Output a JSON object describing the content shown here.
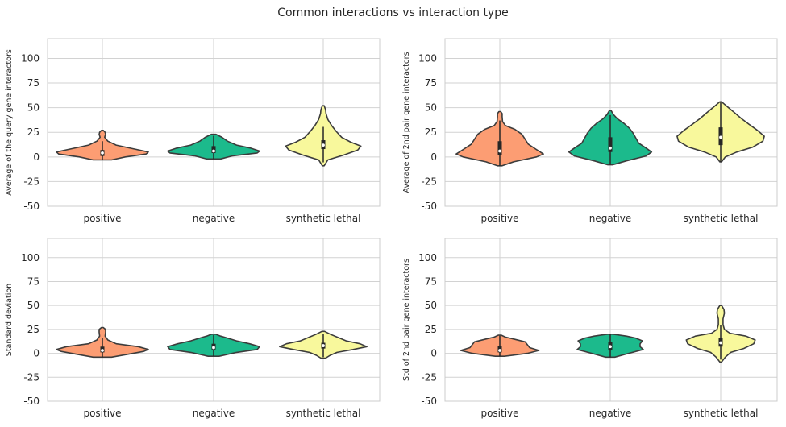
{
  "figure": {
    "title": "Common interactions vs interaction type"
  },
  "colors": {
    "positive": "#fc9d73",
    "negative": "#1cba8c",
    "synthetic_lethal": "#f8f89c",
    "outline": "#3c3c3c",
    "grid": "#d2d2d2",
    "box": "#262626"
  },
  "chart_data": [
    {
      "type": "violin",
      "ylabel": "Average of the query gene interactors",
      "categories": [
        "positive",
        "negative",
        "synthetic lethal"
      ],
      "ylim": [
        -50,
        120
      ],
      "yticks": [
        -50,
        -25,
        0,
        25,
        50,
        75,
        100
      ],
      "grid": true,
      "series": [
        {
          "category": "positive",
          "min": -3,
          "max": 27,
          "q1": 1,
          "median": 4,
          "q3": 7,
          "density": [
            [
              -3,
              0.2
            ],
            [
              0,
              0.5
            ],
            [
              3,
              0.95
            ],
            [
              5,
              1.0
            ],
            [
              8,
              0.7
            ],
            [
              12,
              0.3
            ],
            [
              16,
              0.12
            ],
            [
              20,
              0.05
            ],
            [
              23,
              0.07
            ],
            [
              25,
              0.06
            ],
            [
              27,
              0.02
            ]
          ]
        },
        {
          "category": "negative",
          "min": -2,
          "max": 23,
          "q1": 4,
          "median": 6,
          "q3": 11,
          "density": [
            [
              -2,
              0.15
            ],
            [
              1,
              0.4
            ],
            [
              4,
              0.95
            ],
            [
              6,
              1.0
            ],
            [
              9,
              0.8
            ],
            [
              12,
              0.5
            ],
            [
              16,
              0.3
            ],
            [
              20,
              0.18
            ],
            [
              23,
              0.05
            ]
          ]
        },
        {
          "category": "synthetic lethal",
          "min": -9,
          "max": 52,
          "q1": 8,
          "median": 12,
          "q3": 17,
          "density": [
            [
              -9,
              0.02
            ],
            [
              -3,
              0.1
            ],
            [
              2,
              0.45
            ],
            [
              7,
              0.75
            ],
            [
              11,
              0.82
            ],
            [
              15,
              0.6
            ],
            [
              20,
              0.4
            ],
            [
              26,
              0.28
            ],
            [
              32,
              0.18
            ],
            [
              38,
              0.1
            ],
            [
              44,
              0.06
            ],
            [
              48,
              0.05
            ],
            [
              52,
              0.02
            ]
          ]
        }
      ]
    },
    {
      "type": "violin",
      "ylabel": "Average of 2nd pair gene interactors",
      "categories": [
        "positive",
        "negative",
        "synthetic lethal"
      ],
      "ylim": [
        -50,
        120
      ],
      "yticks": [
        -50,
        -25,
        0,
        25,
        50,
        75,
        100
      ],
      "grid": true,
      "series": [
        {
          "category": "positive",
          "min": -9,
          "max": 46,
          "q1": 2,
          "median": 6,
          "q3": 16,
          "density": [
            [
              -9,
              0.05
            ],
            [
              -5,
              0.3
            ],
            [
              0,
              0.8
            ],
            [
              3,
              0.95
            ],
            [
              8,
              0.78
            ],
            [
              13,
              0.62
            ],
            [
              18,
              0.55
            ],
            [
              23,
              0.48
            ],
            [
              28,
              0.33
            ],
            [
              32,
              0.12
            ],
            [
              36,
              0.06
            ],
            [
              41,
              0.05
            ],
            [
              44,
              0.05
            ],
            [
              46,
              0.02
            ]
          ]
        },
        {
          "category": "negative",
          "min": -8,
          "max": 47,
          "q1": 5,
          "median": 9,
          "q3": 20,
          "density": [
            [
              -8,
              0.05
            ],
            [
              -4,
              0.35
            ],
            [
              1,
              0.78
            ],
            [
              5,
              0.9
            ],
            [
              9,
              0.78
            ],
            [
              14,
              0.62
            ],
            [
              19,
              0.56
            ],
            [
              24,
              0.5
            ],
            [
              29,
              0.42
            ],
            [
              34,
              0.3
            ],
            [
              39,
              0.15
            ],
            [
              43,
              0.07
            ],
            [
              47,
              0.02
            ]
          ]
        },
        {
          "category": "synthetic lethal",
          "min": -5,
          "max": 56,
          "q1": 12,
          "median": 20,
          "q3": 30,
          "density": [
            [
              -5,
              0.02
            ],
            [
              0,
              0.1
            ],
            [
              5,
              0.35
            ],
            [
              10,
              0.7
            ],
            [
              16,
              0.92
            ],
            [
              21,
              0.95
            ],
            [
              27,
              0.8
            ],
            [
              33,
              0.62
            ],
            [
              39,
              0.45
            ],
            [
              45,
              0.3
            ],
            [
              50,
              0.17
            ],
            [
              54,
              0.07
            ],
            [
              56,
              0.02
            ]
          ]
        }
      ]
    },
    {
      "type": "violin",
      "ylabel": "Standard deviation",
      "categories": [
        "positive",
        "negative",
        "synthetic lethal"
      ],
      "ylim": [
        -50,
        120
      ],
      "yticks": [
        -50,
        -25,
        0,
        25,
        50,
        75,
        100
      ],
      "grid": true,
      "series": [
        {
          "category": "positive",
          "min": -4,
          "max": 27,
          "q1": 1,
          "median": 3,
          "q3": 7,
          "density": [
            [
              -4,
              0.2
            ],
            [
              -1,
              0.55
            ],
            [
              2,
              0.9
            ],
            [
              4,
              1.0
            ],
            [
              7,
              0.78
            ],
            [
              10,
              0.3
            ],
            [
              14,
              0.12
            ],
            [
              18,
              0.06
            ],
            [
              22,
              0.07
            ],
            [
              25,
              0.07
            ],
            [
              27,
              0.02
            ]
          ]
        },
        {
          "category": "negative",
          "min": -3,
          "max": 20,
          "q1": 4,
          "median": 6,
          "q3": 10,
          "density": [
            [
              -3,
              0.12
            ],
            [
              1,
              0.5
            ],
            [
              4,
              0.95
            ],
            [
              7,
              1.0
            ],
            [
              10,
              0.78
            ],
            [
              13,
              0.5
            ],
            [
              16,
              0.3
            ],
            [
              18,
              0.15
            ],
            [
              20,
              0.04
            ]
          ]
        },
        {
          "category": "synthetic lethal",
          "min": -5,
          "max": 23,
          "q1": 5,
          "median": 8,
          "q3": 11,
          "density": [
            [
              -5,
              0.05
            ],
            [
              -2,
              0.15
            ],
            [
              1,
              0.3
            ],
            [
              4,
              0.65
            ],
            [
              7,
              0.95
            ],
            [
              10,
              0.8
            ],
            [
              13,
              0.5
            ],
            [
              17,
              0.3
            ],
            [
              20,
              0.15
            ],
            [
              23,
              0.03
            ]
          ]
        }
      ]
    },
    {
      "type": "violin",
      "ylabel": "Std of 2nd pair gene interactors",
      "categories": [
        "positive",
        "negative",
        "synthetic lethal"
      ],
      "ylim": [
        -50,
        120
      ],
      "yticks": [
        -50,
        -25,
        0,
        25,
        50,
        75,
        100
      ],
      "grid": true,
      "series": [
        {
          "category": "positive",
          "min": -3,
          "max": 19,
          "q1": 1,
          "median": 3,
          "q3": 8,
          "density": [
            [
              -3,
              0.1
            ],
            [
              0,
              0.6
            ],
            [
              3,
              0.85
            ],
            [
              6,
              0.65
            ],
            [
              9,
              0.6
            ],
            [
              12,
              0.55
            ],
            [
              15,
              0.3
            ],
            [
              17,
              0.12
            ],
            [
              19,
              0.03
            ]
          ]
        },
        {
          "category": "negative",
          "min": -4,
          "max": 20,
          "q1": 3,
          "median": 7,
          "q3": 12,
          "density": [
            [
              -4,
              0.1
            ],
            [
              0,
              0.4
            ],
            [
              4,
              0.72
            ],
            [
              7,
              0.65
            ],
            [
              10,
              0.65
            ],
            [
              13,
              0.7
            ],
            [
              16,
              0.55
            ],
            [
              18,
              0.35
            ],
            [
              20,
              0.06
            ]
          ]
        },
        {
          "category": "synthetic lethal",
          "min": -9,
          "max": 50,
          "q1": 7,
          "median": 11,
          "q3": 16,
          "density": [
            [
              -9,
              0.02
            ],
            [
              -4,
              0.1
            ],
            [
              1,
              0.22
            ],
            [
              5,
              0.5
            ],
            [
              10,
              0.72
            ],
            [
              14,
              0.75
            ],
            [
              18,
              0.55
            ],
            [
              21,
              0.2
            ],
            [
              25,
              0.08
            ],
            [
              30,
              0.05
            ],
            [
              36,
              0.05
            ],
            [
              42,
              0.08
            ],
            [
              46,
              0.07
            ],
            [
              50,
              0.02
            ]
          ]
        }
      ]
    }
  ]
}
